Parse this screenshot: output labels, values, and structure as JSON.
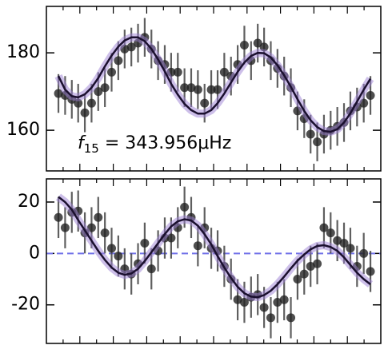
{
  "chart_data": [
    {
      "type": "errorbar",
      "annotation": {
        "symbol": "f",
        "subscript": "15",
        "text": " = 343.956μHz"
      },
      "x": [
        0.036,
        0.056,
        0.076,
        0.095,
        0.115,
        0.135,
        0.155,
        0.175,
        0.195,
        0.215,
        0.234,
        0.254,
        0.274,
        0.294,
        0.314,
        0.334,
        0.354,
        0.373,
        0.393,
        0.413,
        0.433,
        0.453,
        0.473,
        0.493,
        0.512,
        0.532,
        0.552,
        0.572,
        0.592,
        0.612,
        0.632,
        0.651,
        0.671,
        0.691,
        0.711,
        0.731,
        0.751,
        0.771,
        0.79,
        0.81,
        0.83,
        0.85,
        0.87,
        0.89,
        0.909,
        0.929,
        0.949,
        0.969
      ],
      "series": [
        {
          "color": "#222222",
          "values": [
            169.5,
            169,
            168,
            167,
            164.5,
            167,
            170,
            171,
            175,
            178,
            181,
            181.5,
            182.5,
            184,
            181,
            178,
            177,
            175,
            175,
            171,
            171,
            170.5,
            167,
            170.5,
            170.5,
            175,
            174,
            177,
            182,
            178,
            182.5,
            181.5,
            178,
            176,
            174,
            171,
            165,
            163,
            159,
            157,
            159,
            160,
            161,
            162,
            165,
            166,
            167,
            169
          ],
          "errors": [
            5,
            5,
            5,
            5,
            5,
            5,
            5,
            5,
            5,
            5,
            5,
            5,
            5,
            5,
            5,
            5,
            5,
            5,
            5,
            5,
            5,
            5,
            5,
            5,
            5,
            5,
            5,
            5,
            5,
            5,
            5,
            5,
            5,
            5,
            5,
            5,
            5,
            5,
            5,
            5,
            5,
            5,
            5,
            5,
            5,
            5,
            5,
            5
          ]
        },
        {
          "color": "#1a0f2e",
          "band_color": "#9b7fd4",
          "values": [
            174,
            170.5,
            168.8,
            168.5,
            169.3,
            171,
            173.5,
            176.5,
            179.3,
            181.6,
            183.2,
            184,
            184,
            183,
            181,
            178.3,
            175.2,
            172,
            169.2,
            166.8,
            165.2,
            164.3,
            164.3,
            165.2,
            167,
            169.5,
            172.3,
            175.1,
            177.5,
            179.2,
            180,
            179.9,
            178.8,
            176.8,
            174.2,
            171.2,
            168,
            165,
            162.6,
            160.8,
            159.8,
            159.6,
            160.3,
            162,
            164.4,
            167.4,
            170.5,
            173.3
          ]
        }
      ],
      "xlim": [
        0,
        1
      ],
      "xticks": [
        0.05,
        0.1,
        0.15,
        0.2,
        0.25,
        0.3,
        0.35,
        0.4,
        0.45,
        0.5,
        0.55,
        0.6,
        0.65,
        0.7,
        0.75,
        0.8,
        0.85,
        0.9,
        0.95
      ],
      "ylim": [
        149.5,
        192
      ],
      "yticks": [
        160,
        180
      ]
    },
    {
      "type": "errorbar",
      "x": [
        0.036,
        0.056,
        0.076,
        0.095,
        0.115,
        0.135,
        0.155,
        0.175,
        0.195,
        0.215,
        0.234,
        0.254,
        0.274,
        0.294,
        0.314,
        0.334,
        0.354,
        0.373,
        0.393,
        0.413,
        0.433,
        0.453,
        0.473,
        0.493,
        0.512,
        0.532,
        0.552,
        0.572,
        0.592,
        0.612,
        0.632,
        0.651,
        0.671,
        0.691,
        0.711,
        0.731,
        0.751,
        0.771,
        0.79,
        0.81,
        0.83,
        0.85,
        0.87,
        0.89,
        0.909,
        0.929,
        0.949,
        0.969
      ],
      "series": [
        {
          "color": "#222222",
          "values": [
            14,
            10,
            16,
            16.5,
            8,
            10,
            14,
            8,
            2,
            -1,
            -6,
            -8,
            -4,
            4,
            -6,
            1,
            6,
            6,
            10,
            18,
            14,
            3,
            10,
            2,
            1,
            -5,
            -10,
            -18,
            -19,
            -17,
            -16,
            -21,
            -25,
            -19,
            -18,
            -25,
            -10,
            -8,
            -5,
            -4,
            10,
            8,
            5,
            4,
            2,
            -5,
            0,
            -7
          ],
          "errors": [
            8,
            8,
            8,
            8,
            8,
            8,
            8,
            8,
            8,
            8,
            8,
            8,
            8,
            8,
            8,
            8,
            8,
            8,
            8,
            8,
            8,
            8,
            8,
            8,
            8,
            8,
            8,
            8,
            8,
            8,
            8,
            8,
            8,
            8,
            8,
            8,
            8,
            8,
            8,
            8,
            8,
            8,
            8,
            8,
            8,
            8,
            8,
            8
          ]
        },
        {
          "color": "#1a0f2e",
          "band_color": "#9b7fd4",
          "values": [
            22,
            20,
            17,
            13,
            9,
            5,
            1,
            -2.5,
            -5.5,
            -7.5,
            -8.3,
            -7.8,
            -6,
            -3,
            0.5,
            4,
            7.5,
            10.5,
            12.5,
            13.3,
            12.8,
            10.8,
            7.5,
            3.5,
            -1,
            -5.5,
            -9.5,
            -13,
            -15.5,
            -16.8,
            -17,
            -16.2,
            -14.5,
            -12,
            -9,
            -5.8,
            -2.8,
            -0.4,
            1.6,
            2.9,
            3.2,
            2.5,
            1,
            -1.5,
            -4.5,
            -7.5,
            -10,
            -12
          ]
        }
      ],
      "hline": {
        "value": 0,
        "color": "#6f6fe8"
      },
      "xlim": [
        0,
        1
      ],
      "xticks": [
        0.05,
        0.1,
        0.15,
        0.2,
        0.25,
        0.3,
        0.35,
        0.4,
        0.45,
        0.5,
        0.55,
        0.6,
        0.65,
        0.7,
        0.75,
        0.8,
        0.85,
        0.9,
        0.95
      ],
      "ylim": [
        -35,
        29
      ],
      "yticks": [
        -20,
        0,
        20
      ]
    }
  ]
}
